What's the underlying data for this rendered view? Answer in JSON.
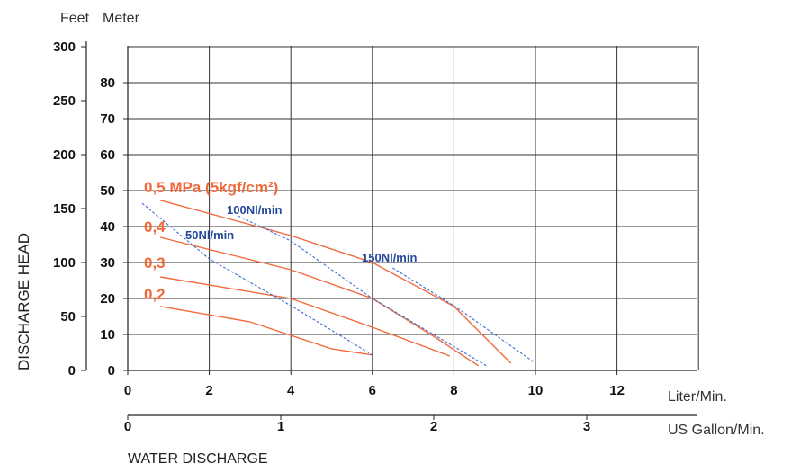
{
  "chart_data": {
    "type": "line",
    "ylabel": "DISCHARGE HEAD",
    "xlabel": "WATER DISCHARGE",
    "y_units": {
      "feet": "Feet",
      "meter": "Meter"
    },
    "x_units": {
      "liter": "Liter/Min.",
      "gallon": "US Gallon/Min."
    },
    "x_liter": {
      "ticks": [
        "0",
        "2",
        "4",
        "6",
        "8",
        "10",
        "12"
      ],
      "values": [
        0,
        2,
        4,
        6,
        8,
        10,
        12
      ],
      "range": [
        0,
        14
      ]
    },
    "x_gallon": {
      "ticks": [
        "0",
        "1",
        "2",
        "3"
      ],
      "values": [
        0,
        1,
        2,
        3
      ]
    },
    "y_meter": {
      "ticks": [
        "0",
        "10",
        "20",
        "30",
        "40",
        "50",
        "60",
        "70",
        "80"
      ],
      "values": [
        0,
        10,
        20,
        30,
        40,
        50,
        60,
        70,
        80
      ],
      "range": [
        0,
        90
      ]
    },
    "y_feet": {
      "ticks": [
        "0",
        "50",
        "100",
        "150",
        "200",
        "250",
        "300"
      ],
      "values": [
        0,
        50,
        100,
        150,
        200,
        250,
        300
      ]
    },
    "grid": true,
    "pressure_series": [
      {
        "name": "0,5 MPa (5kgf/cm²)",
        "color": "#f06a3c",
        "points": [
          [
            0.8,
            47.3
          ],
          [
            4,
            37.5
          ],
          [
            6,
            30
          ],
          [
            8,
            17.8
          ],
          [
            9.4,
            2
          ]
        ]
      },
      {
        "name": "0,4",
        "color": "#f06a3c",
        "points": [
          [
            0.8,
            37
          ],
          [
            4,
            28
          ],
          [
            6,
            20
          ],
          [
            7.5,
            9.5
          ],
          [
            8.6,
            1.3
          ]
        ]
      },
      {
        "name": "0,3",
        "color": "#f06a3c",
        "points": [
          [
            0.8,
            26
          ],
          [
            4,
            20
          ],
          [
            6,
            12
          ],
          [
            7.9,
            4
          ]
        ]
      },
      {
        "name": "0,2",
        "color": "#f06a3c",
        "points": [
          [
            0.8,
            17.8
          ],
          [
            3,
            13.5
          ],
          [
            5,
            6
          ],
          [
            6,
            4.3
          ]
        ]
      }
    ],
    "airflow_series": [
      {
        "name": "50Nl/min",
        "color": "#3a6fd0",
        "points": [
          [
            0.35,
            46.5
          ],
          [
            2,
            31
          ],
          [
            4,
            18
          ],
          [
            6,
            4.3
          ]
        ]
      },
      {
        "name": "100Nl/min",
        "color": "#3a6fd0",
        "points": [
          [
            2.7,
            43
          ],
          [
            4,
            36
          ],
          [
            6,
            20
          ],
          [
            8.8,
            1.3
          ]
        ]
      },
      {
        "name": "150Nl/min",
        "color": "#3a6fd0",
        "points": [
          [
            6.5,
            28.5
          ],
          [
            8,
            18
          ],
          [
            10,
            2
          ]
        ]
      }
    ]
  }
}
